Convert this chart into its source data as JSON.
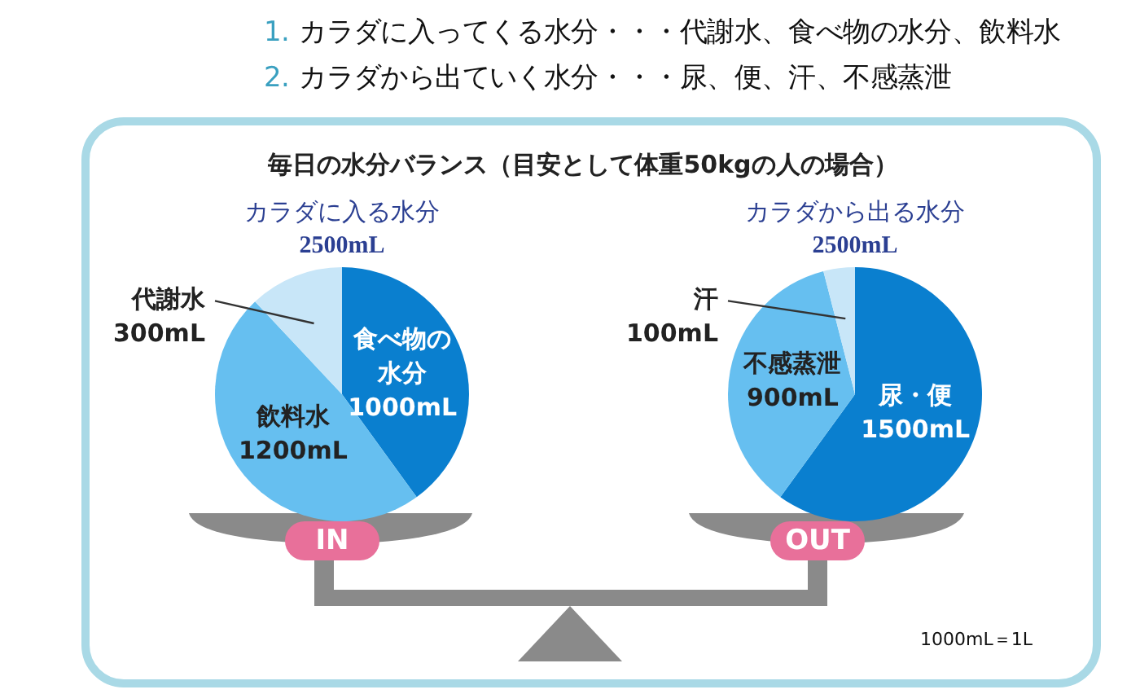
{
  "chart_data": [
    {
      "type": "other",
      "title": "毎日の水分バランス（目安として体重50kgの人の場合）",
      "annotations": [
        "1. カラダに入ってくる水分・・・代謝水、食べ物の水分、飲料水",
        "2. カラダから出ていく水分・・・尿、便、汗、不感蒸泄"
      ]
    },
    {
      "type": "pie",
      "title": "カラダに入る水分",
      "subtitle": "2500mL",
      "categories": [
        "食べ物の水分",
        "飲料水",
        "代謝水"
      ],
      "values": [
        1000,
        1200,
        300
      ],
      "value_labels": [
        "1000mL",
        "1200mL",
        "300mL"
      ],
      "colors": [
        "#0a7fcf",
        "#66bff0",
        "#c8e6f8"
      ],
      "annotations": [
        "IN"
      ]
    },
    {
      "type": "pie",
      "title": "カラダから出る水分",
      "subtitle": "2500mL",
      "categories": [
        "尿・便",
        "不感蒸泄",
        "汗"
      ],
      "values": [
        1500,
        900,
        100
      ],
      "value_labels": [
        "1500mL",
        "900mL",
        "100mL"
      ],
      "colors": [
        "#0a7fcf",
        "#66bff0",
        "#c8e6f8"
      ],
      "annotations": [
        "OUT",
        "1000mL＝1L"
      ]
    }
  ]
}
